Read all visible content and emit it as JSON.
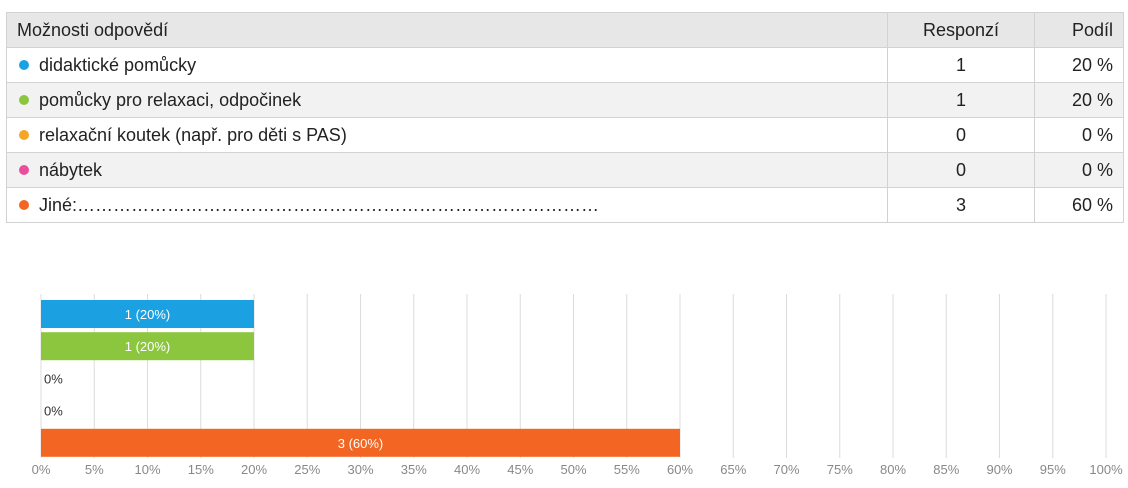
{
  "table": {
    "headers": [
      "Možnosti odpovědí",
      "Responzí",
      "Podíl"
    ],
    "rows": [
      {
        "label": "didaktické pomůcky",
        "responses": "1",
        "share": "20 %",
        "color": "#1ba1e2"
      },
      {
        "label": "pomůcky pro relaxaci, odpočinek",
        "responses": "1",
        "share": "20 %",
        "color": "#8cc63f"
      },
      {
        "label": "relaxační koutek (např. pro děti s PAS)",
        "responses": "0",
        "share": "0 %",
        "color": "#f5a623"
      },
      {
        "label": "nábytek",
        "responses": "0",
        "share": "0 %",
        "color": "#e8509b"
      },
      {
        "label": "Jiné:……………………………………………………………………………",
        "responses": "3",
        "share": "60 %",
        "color": "#f26522"
      }
    ]
  },
  "chart_data": {
    "type": "bar",
    "orientation": "horizontal",
    "categories": [
      "didaktické pomůcky",
      "pomůcky pro relaxaci, odpočinek",
      "relaxační koutek (např. pro děti s PAS)",
      "nábytek",
      "Jiné:……………………………………………………………………………"
    ],
    "values": [
      20,
      20,
      0,
      0,
      60
    ],
    "counts": [
      1,
      1,
      0,
      0,
      3
    ],
    "data_labels": [
      "1 (20%)",
      "1 (20%)",
      "0%",
      "0%",
      "3 (60%)"
    ],
    "colors": [
      "#1ba1e2",
      "#8cc63f",
      "#f5a623",
      "#e8509b",
      "#f26522"
    ],
    "xlim": [
      0,
      100
    ],
    "xticks": [
      0,
      5,
      10,
      15,
      20,
      25,
      30,
      35,
      40,
      45,
      50,
      55,
      60,
      65,
      70,
      75,
      80,
      85,
      90,
      95,
      100
    ],
    "xtick_labels": [
      "0%",
      "5%",
      "10%",
      "15%",
      "20%",
      "25%",
      "30%",
      "35%",
      "40%",
      "45%",
      "50%",
      "55%",
      "60%",
      "65%",
      "70%",
      "75%",
      "80%",
      "85%",
      "90%",
      "95%",
      "100%"
    ],
    "grid": true,
    "legend": "none"
  }
}
